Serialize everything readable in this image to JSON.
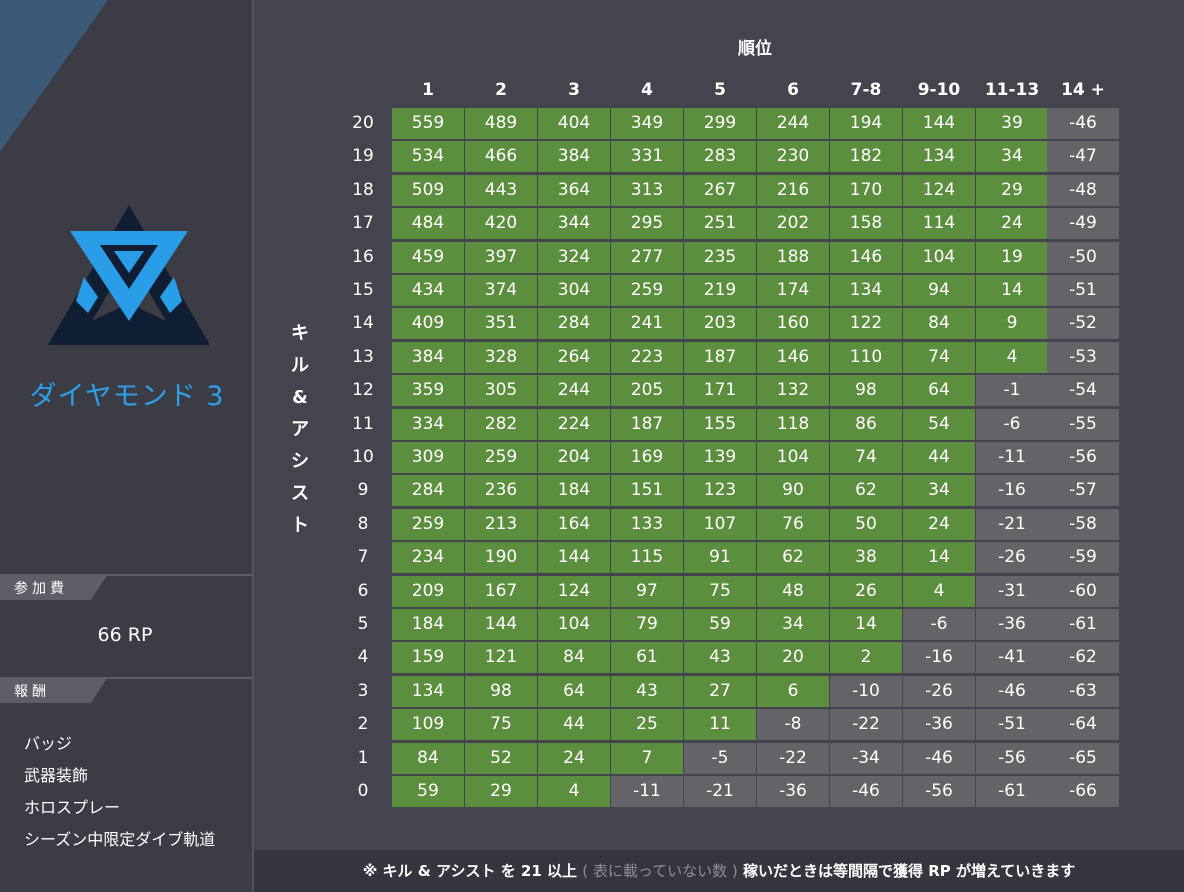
{
  "sidebar": {
    "rank_name": "ダイヤモンド 3",
    "fee_label": "参加費",
    "fee_value": "66 RP",
    "reward_label": "報酬",
    "rewards": [
      "バッジ",
      "武器装飾",
      "ホロスプレー",
      "シーズン中限定ダイブ軌道"
    ],
    "emblem_icon": "diamond-rank-emblem-icon"
  },
  "table": {
    "column_title": "順位",
    "row_title": [
      "キ",
      "ル",
      "&",
      "ア",
      "シ",
      "ス",
      "ト"
    ],
    "columns": [
      "1",
      "2",
      "3",
      "4",
      "5",
      "6",
      "7-8",
      "9-10",
      "11-13",
      "14 +"
    ],
    "rows": [
      {
        "kills": "20",
        "values": [
          559,
          489,
          404,
          349,
          299,
          244,
          194,
          144,
          39,
          -46
        ]
      },
      {
        "kills": "19",
        "values": [
          534,
          466,
          384,
          331,
          283,
          230,
          182,
          134,
          34,
          -47
        ]
      },
      {
        "kills": "18",
        "values": [
          509,
          443,
          364,
          313,
          267,
          216,
          170,
          124,
          29,
          -48
        ]
      },
      {
        "kills": "17",
        "values": [
          484,
          420,
          344,
          295,
          251,
          202,
          158,
          114,
          24,
          -49
        ]
      },
      {
        "kills": "16",
        "values": [
          459,
          397,
          324,
          277,
          235,
          188,
          146,
          104,
          19,
          -50
        ]
      },
      {
        "kills": "15",
        "values": [
          434,
          374,
          304,
          259,
          219,
          174,
          134,
          94,
          14,
          -51
        ]
      },
      {
        "kills": "14",
        "values": [
          409,
          351,
          284,
          241,
          203,
          160,
          122,
          84,
          9,
          -52
        ]
      },
      {
        "kills": "13",
        "values": [
          384,
          328,
          264,
          223,
          187,
          146,
          110,
          74,
          4,
          -53
        ]
      },
      {
        "kills": "12",
        "values": [
          359,
          305,
          244,
          205,
          171,
          132,
          98,
          64,
          -1,
          -54
        ]
      },
      {
        "kills": "11",
        "values": [
          334,
          282,
          224,
          187,
          155,
          118,
          86,
          54,
          -6,
          -55
        ]
      },
      {
        "kills": "10",
        "values": [
          309,
          259,
          204,
          169,
          139,
          104,
          74,
          44,
          -11,
          -56
        ]
      },
      {
        "kills": "9",
        "values": [
          284,
          236,
          184,
          151,
          123,
          90,
          62,
          34,
          -16,
          -57
        ]
      },
      {
        "kills": "8",
        "values": [
          259,
          213,
          164,
          133,
          107,
          76,
          50,
          24,
          -21,
          -58
        ]
      },
      {
        "kills": "7",
        "values": [
          234,
          190,
          144,
          115,
          91,
          62,
          38,
          14,
          -26,
          -59
        ]
      },
      {
        "kills": "6",
        "values": [
          209,
          167,
          124,
          97,
          75,
          48,
          26,
          4,
          -31,
          -60
        ]
      },
      {
        "kills": "5",
        "values": [
          184,
          144,
          104,
          79,
          59,
          34,
          14,
          -6,
          -36,
          -61
        ]
      },
      {
        "kills": "4",
        "values": [
          159,
          121,
          84,
          61,
          43,
          20,
          2,
          -16,
          -41,
          -62
        ]
      },
      {
        "kills": "3",
        "values": [
          134,
          98,
          64,
          43,
          27,
          6,
          -10,
          -26,
          -46,
          -63
        ]
      },
      {
        "kills": "2",
        "values": [
          109,
          75,
          44,
          25,
          11,
          -8,
          -22,
          -36,
          -51,
          -64
        ]
      },
      {
        "kills": "1",
        "values": [
          84,
          52,
          24,
          7,
          -5,
          -22,
          -34,
          -46,
          -56,
          -65
        ]
      },
      {
        "kills": "0",
        "values": [
          59,
          29,
          4,
          -11,
          -21,
          -36,
          -46,
          -56,
          -61,
          -66
        ]
      }
    ],
    "colors": {
      "positive": "#5c8f3d",
      "negative": "#636368"
    }
  },
  "footer": {
    "part1": "※ キル & アシスト を 21 以上",
    "part2": "( 表に載っていない数 )",
    "part3": "稼いだときは等間隔で獲得 RP が増えていきます"
  }
}
